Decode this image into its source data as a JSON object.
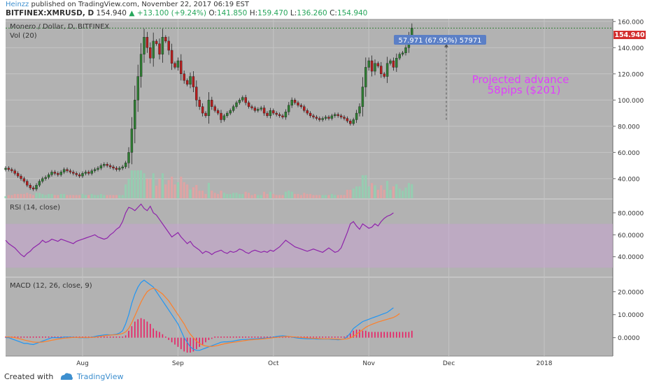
{
  "header": {
    "author": "Heinzz",
    "published_text": "published on TradingView.com, November 22, 2017 06:19 EST",
    "symbol": "BITFINEX:XMRUSD, D",
    "price": "154.940",
    "change": "+13.100 (+9.24%)",
    "o_label": "O:",
    "o_value": "141.850",
    "h_label": "H:",
    "h_value": "159.470",
    "l_label": "L:",
    "l_value": "136.260",
    "c_label": "C:",
    "c_value": "154.940"
  },
  "footer": {
    "created_with": "Created with",
    "brand": "TradingView"
  },
  "colors": {
    "background": "#b2b2b2",
    "up": "#2e7d32",
    "down": "#b71c1c",
    "rsi": "#8e24aa",
    "rsi_band": "#c7a4d0",
    "macd": "#2196f3",
    "signal": "#ff7f27",
    "hist": "#e91e63",
    "annotation": "#e040fb",
    "price_label": "#d32f2f",
    "measure_label": "#5b7fc6"
  },
  "chart_data": [
    {
      "type": "candlestick",
      "title": "Monero / Dollar, D, BITFINEX",
      "volume_label": "Vol (20)",
      "x_ticks": [
        "Aug",
        "Sep",
        "Oct",
        "Nov",
        "Dec",
        "2018"
      ],
      "y_ticks": [
        "40.000",
        "60.000",
        "80.000",
        "100.000",
        "120.000",
        "140.000",
        "160.000"
      ],
      "ylim": [
        25,
        162
      ],
      "last_price": "154.940",
      "last_price_value": 154.94,
      "close_series": [
        48,
        47,
        46,
        44,
        42,
        40,
        38,
        35,
        33,
        32,
        35,
        38,
        40,
        41,
        43,
        45,
        44,
        43,
        45,
        47,
        46,
        45,
        44,
        43,
        42,
        44,
        45,
        44,
        46,
        47,
        48,
        50,
        51,
        50,
        49,
        48,
        47,
        48,
        49,
        52,
        60,
        78,
        100,
        118,
        135,
        148,
        140,
        132,
        145,
        143,
        135,
        148,
        145,
        138,
        128,
        125,
        130,
        120,
        115,
        112,
        118,
        110,
        100,
        95,
        90,
        88,
        100,
        95,
        92,
        90,
        85,
        88,
        90,
        92,
        95,
        98,
        100,
        102,
        98,
        95,
        94,
        92,
        93,
        94,
        90,
        88,
        92,
        90,
        89,
        88,
        87,
        91,
        96,
        100,
        98,
        96,
        95,
        92,
        90,
        88,
        87,
        86,
        85,
        86,
        87,
        86,
        88,
        89,
        88,
        87,
        86,
        84,
        82,
        85,
        90,
        95,
        110,
        125,
        130,
        122,
        128,
        126,
        120,
        118,
        128,
        130,
        125,
        132,
        135,
        136,
        140,
        148,
        155
      ],
      "measure": {
        "text": "57.971 (67.95%) 57971",
        "from": 85,
        "to": 143
      },
      "annotation": [
        "Projected advance",
        "58pips ($201)"
      ]
    },
    {
      "type": "line",
      "title": "RSI (14, close)",
      "y_ticks": [
        "40.0000",
        "60.0000",
        "80.0000"
      ],
      "ylim": [
        22,
        92
      ],
      "band": [
        30,
        70
      ],
      "values": [
        55,
        52,
        50,
        48,
        45,
        42,
        40,
        43,
        45,
        48,
        50,
        52,
        55,
        53,
        54,
        56,
        55,
        54,
        56,
        55,
        54,
        53,
        52,
        54,
        55,
        56,
        57,
        58,
        59,
        60,
        58,
        57,
        56,
        57,
        60,
        62,
        65,
        67,
        72,
        80,
        85,
        84,
        82,
        85,
        88,
        84,
        82,
        86,
        80,
        78,
        74,
        70,
        66,
        62,
        58,
        60,
        62,
        58,
        55,
        52,
        54,
        50,
        48,
        46,
        43,
        45,
        44,
        42,
        44,
        45,
        46,
        44,
        43,
        45,
        44,
        45,
        47,
        46,
        44,
        43,
        45,
        46,
        45,
        44,
        45,
        44,
        46,
        45,
        47,
        49,
        52,
        55,
        53,
        51,
        49,
        48,
        47,
        46,
        45,
        46,
        47,
        46,
        45,
        44,
        46,
        48,
        46,
        44,
        45,
        48,
        55,
        62,
        70,
        72,
        68,
        65,
        70,
        68,
        66,
        67,
        70,
        68,
        72,
        75,
        77,
        78,
        80
      ]
    },
    {
      "type": "line",
      "title": "MACD (12, 26, close, 9)",
      "y_ticks": [
        "0.0000",
        "10.0000",
        "20.0000"
      ],
      "ylim": [
        -8,
        26
      ],
      "macd": [
        0,
        0,
        -0.5,
        -1,
        -1.5,
        -2,
        -2.5,
        -2.5,
        -2.8,
        -3,
        -2.5,
        -2,
        -1.5,
        -1,
        -0.5,
        0,
        0,
        0,
        0,
        0.3,
        0.3,
        0.2,
        0.2,
        0.1,
        0,
        0,
        0,
        0,
        0.2,
        0.5,
        0.8,
        1,
        1.2,
        1.3,
        1.2,
        1.3,
        1.5,
        2,
        3,
        6,
        10,
        15,
        19,
        22,
        24,
        25,
        24,
        23,
        22,
        20,
        18,
        16,
        14,
        12,
        10,
        8,
        6,
        3,
        0,
        -2,
        -4,
        -5,
        -5.5,
        -5.5,
        -5,
        -4.5,
        -4,
        -3.5,
        -3,
        -2.5,
        -2,
        -1.8,
        -1.8,
        -1.7,
        -1.5,
        -1.2,
        -1,
        -0.8,
        -0.8,
        -0.7,
        -0.6,
        -0.5,
        -0.4,
        -0.3,
        -0.2,
        -0.1,
        0,
        0.2,
        0.5,
        0.7,
        0.8,
        0.7,
        0.5,
        0.3,
        0,
        -0.2,
        -0.3,
        -0.4,
        -0.5,
        -0.5,
        -0.5,
        -0.6,
        -0.6,
        -0.6,
        -0.6,
        -0.6,
        -0.7,
        -0.8,
        -0.9,
        -0.8,
        -0.5,
        0.5,
        2,
        4,
        5,
        6,
        7,
        7.5,
        8,
        8.5,
        9,
        9.5,
        10,
        10.5,
        11,
        12,
        13
      ],
      "signal": [
        0.3,
        0.3,
        0.2,
        0,
        -0.3,
        -0.6,
        -1,
        -1.3,
        -1.6,
        -1.9,
        -2,
        -2,
        -1.9,
        -1.7,
        -1.4,
        -1.1,
        -0.9,
        -0.6,
        -0.4,
        -0.2,
        -0.1,
        0,
        0.1,
        0.1,
        0.1,
        0.1,
        0.1,
        0.1,
        0.1,
        0.2,
        0.4,
        0.6,
        0.8,
        1,
        1.1,
        1.2,
        1.3,
        1.5,
        1.8,
        2.5,
        4,
        6.5,
        9.5,
        12.5,
        15.5,
        18,
        20,
        21,
        21.5,
        21,
        20,
        19,
        17.5,
        16,
        14,
        12,
        10,
        8,
        6,
        3.5,
        1.5,
        0,
        -1.5,
        -2.5,
        -3.2,
        -3.6,
        -3.8,
        -3.8,
        -3.6,
        -3.4,
        -3,
        -2.7,
        -2.4,
        -2.2,
        -2,
        -1.8,
        -1.6,
        -1.4,
        -1.2,
        -1,
        -0.9,
        -0.8,
        -0.7,
        -0.6,
        -0.5,
        -0.3,
        -0.2,
        0,
        0.1,
        0.3,
        0.4,
        0.5,
        0.5,
        0.4,
        0.3,
        0.2,
        0.1,
        0,
        -0.1,
        -0.2,
        -0.3,
        -0.3,
        -0.4,
        -0.5,
        -0.5,
        -0.5,
        -0.5,
        -0.6,
        -0.6,
        -0.7,
        -0.6,
        -0.5,
        -0.1,
        0.6,
        1.5,
        2.5,
        3.5,
        4.5,
        5.2,
        5.8,
        6.3,
        6.8,
        7.2,
        7.6,
        8,
        8.4,
        8.8,
        9.5,
        10.5
      ],
      "hist": [
        0.5,
        0.5,
        0.5,
        0.5,
        0.5,
        0.5,
        0.5,
        0.5,
        0.5,
        0.5,
        0.5,
        0.5,
        0.5,
        0.5,
        0.5,
        0.5,
        0.5,
        0.5,
        0.5,
        0.5,
        0.5,
        0.5,
        0.5,
        0.5,
        0.5,
        0.5,
        0.5,
        0.5,
        0.5,
        0.5,
        0.5,
        0.5,
        0.5,
        0.5,
        0.5,
        0.5,
        0.5,
        0.5,
        0.5,
        1,
        3,
        5,
        7,
        8,
        8.5,
        8,
        7,
        6,
        4,
        3,
        2.5,
        1.5,
        0.5,
        -1,
        -2,
        -3,
        -4,
        -5,
        -6,
        -6.5,
        -6.5,
        -6,
        -5,
        -4,
        -3,
        -2,
        -1,
        -0.5,
        0.5,
        0.5,
        0.5,
        0.5,
        0.5,
        0.5,
        0.5,
        0.5,
        0.5,
        0.5,
        0.5,
        0.5,
        0.5,
        0.5,
        0.5,
        0.5,
        0.5,
        0.5,
        0.5,
        0.5,
        0.5,
        0.5,
        0.5,
        0.5,
        0.5,
        0.5,
        0.5,
        0.5,
        0.5,
        0.5,
        0.5,
        0.5,
        0.5,
        0.5,
        0.5,
        0.5,
        0.5,
        0.5,
        0.5,
        0.5,
        0.5,
        0.5,
        0.5,
        1,
        2,
        3,
        3.5,
        3.5,
        3,
        3,
        2.5,
        2.5,
        2.5,
        2.5,
        2.5,
        2.5,
        2.5,
        2.5,
        2.5,
        2.5,
        2.5,
        2.5,
        2.5,
        2.5,
        3
      ]
    }
  ]
}
